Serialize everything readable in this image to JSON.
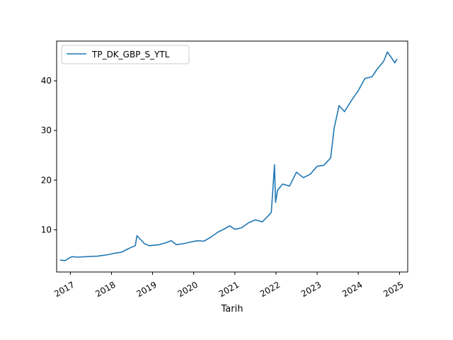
{
  "chart_data": {
    "type": "line",
    "title": "",
    "xlabel": "Tarih",
    "ylabel": "",
    "xlim": [
      "2016-09-01",
      "2025-03-15"
    ],
    "ylim": [
      1.5,
      48
    ],
    "grid": false,
    "legend": "top-left",
    "x_ticks": [
      "2017",
      "2018",
      "2019",
      "2020",
      "2021",
      "2022",
      "2023",
      "2024",
      "2025"
    ],
    "y_ticks": [
      10,
      20,
      30,
      40
    ],
    "series": [
      {
        "name": "TP_DK_GBP_S_YTL",
        "color": "#1f77b4",
        "points": [
          [
            "2016-10-01",
            3.9
          ],
          [
            "2016-11-15",
            3.8
          ],
          [
            "2016-12-20",
            4.3
          ],
          [
            "2017-01-15",
            4.6
          ],
          [
            "2017-03-01",
            4.5
          ],
          [
            "2017-06-01",
            4.6
          ],
          [
            "2017-09-01",
            4.7
          ],
          [
            "2017-12-01",
            5.0
          ],
          [
            "2018-02-01",
            5.3
          ],
          [
            "2018-04-01",
            5.5
          ],
          [
            "2018-06-01",
            6.2
          ],
          [
            "2018-08-01",
            6.8
          ],
          [
            "2018-08-15",
            8.8
          ],
          [
            "2018-09-10",
            8.2
          ],
          [
            "2018-10-20",
            7.2
          ],
          [
            "2018-12-01",
            6.8
          ],
          [
            "2019-03-01",
            7.0
          ],
          [
            "2019-05-01",
            7.4
          ],
          [
            "2019-06-15",
            7.8
          ],
          [
            "2019-08-01",
            7.0
          ],
          [
            "2019-10-01",
            7.2
          ],
          [
            "2019-12-01",
            7.5
          ],
          [
            "2020-02-01",
            7.8
          ],
          [
            "2020-04-01",
            7.7
          ],
          [
            "2020-06-01",
            8.5
          ],
          [
            "2020-08-01",
            9.5
          ],
          [
            "2020-10-01",
            10.2
          ],
          [
            "2020-11-15",
            10.8
          ],
          [
            "2021-01-01",
            10.1
          ],
          [
            "2021-03-01",
            10.4
          ],
          [
            "2021-05-01",
            11.4
          ],
          [
            "2021-07-01",
            12.0
          ],
          [
            "2021-09-01",
            11.6
          ],
          [
            "2021-10-15",
            12.6
          ],
          [
            "2021-11-20",
            13.5
          ],
          [
            "2021-12-05",
            18.5
          ],
          [
            "2021-12-18",
            23.1
          ],
          [
            "2021-12-28",
            15.5
          ],
          [
            "2022-01-15",
            18.0
          ],
          [
            "2022-03-01",
            19.2
          ],
          [
            "2022-05-01",
            18.8
          ],
          [
            "2022-07-01",
            21.6
          ],
          [
            "2022-09-01",
            20.5
          ],
          [
            "2022-11-01",
            21.2
          ],
          [
            "2023-01-01",
            22.8
          ],
          [
            "2023-03-01",
            23.0
          ],
          [
            "2023-05-01",
            24.5
          ],
          [
            "2023-06-01",
            30.5
          ],
          [
            "2023-07-15",
            35.0
          ],
          [
            "2023-09-01",
            33.8
          ],
          [
            "2023-11-01",
            36.0
          ],
          [
            "2024-01-01",
            38.0
          ],
          [
            "2024-03-01",
            40.5
          ],
          [
            "2024-05-01",
            40.8
          ],
          [
            "2024-06-15",
            42.3
          ],
          [
            "2024-08-15",
            44.0
          ],
          [
            "2024-09-15",
            45.8
          ],
          [
            "2024-10-20",
            44.7
          ],
          [
            "2024-11-20",
            43.6
          ],
          [
            "2024-12-10",
            44.4
          ]
        ]
      }
    ]
  }
}
